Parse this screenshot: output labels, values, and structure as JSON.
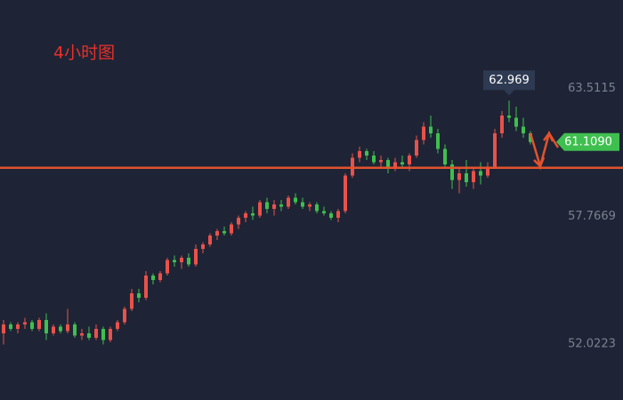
{
  "chart_data": {
    "type": "candlestick",
    "title": "4小时图",
    "ylim": [
      49.5,
      67.5
    ],
    "yticks": [
      52.0223,
      57.7669,
      63.5115
    ],
    "up_color": "#e8524a",
    "down_color": "#3fbf4f",
    "level": 59.95,
    "level_color": "#e2532d",
    "last_price": {
      "value": 61.109,
      "label": "61.1090"
    },
    "open": [
      52.5,
      52.9,
      52.7,
      52.9,
      53.0,
      52.7,
      53.1,
      52.5,
      52.8,
      52.6,
      52.9,
      52.4,
      52.5,
      52.3,
      52.7,
      52.2,
      52.7,
      53.0,
      53.6,
      54.3,
      54.1,
      55.1,
      54.9,
      55.2,
      55.8,
      55.7,
      55.9,
      55.6,
      56.3,
      56.5,
      56.9,
      57.1,
      57.0,
      57.4,
      57.7,
      57.9,
      57.8,
      58.4,
      58.1,
      58.3,
      58.2,
      58.6,
      58.4,
      58.2,
      58.3,
      58.0,
      57.9,
      57.7,
      58.0,
      59.6,
      60.4,
      60.7,
      60.5,
      60.2,
      60.3,
      60.0,
      60.2,
      60.1,
      60.5,
      61.2,
      61.8,
      61.5,
      60.8,
      60.1,
      59.4,
      59.7,
      59.3,
      59.8,
      59.6,
      60.0,
      61.5,
      62.3,
      62.2,
      61.8,
      61.5
    ],
    "high": [
      53.1,
      53.0,
      53.0,
      53.2,
      53.1,
      53.2,
      53.4,
      52.9,
      52.9,
      53.6,
      53.0,
      52.7,
      52.8,
      52.9,
      52.8,
      52.8,
      53.1,
      53.7,
      54.5,
      54.5,
      55.3,
      55.2,
      55.3,
      55.9,
      56.0,
      56.0,
      56.1,
      56.5,
      56.6,
      57.0,
      57.2,
      57.3,
      57.5,
      57.8,
      58.0,
      58.2,
      58.5,
      58.6,
      58.5,
      58.5,
      58.7,
      58.8,
      58.6,
      58.4,
      58.4,
      58.2,
      58.0,
      58.1,
      59.7,
      60.6,
      60.9,
      60.8,
      60.7,
      60.5,
      60.4,
      60.4,
      60.5,
      60.6,
      61.4,
      62.0,
      62.3,
      61.7,
      61.0,
      60.3,
      59.9,
      60.3,
      60.0,
      60.2,
      60.2,
      61.7,
      62.5,
      62.969,
      62.7,
      62.2,
      61.6
    ],
    "low": [
      52.0,
      52.6,
      52.5,
      52.7,
      52.6,
      52.6,
      52.2,
      52.4,
      52.5,
      52.5,
      52.3,
      52.2,
      52.2,
      52.2,
      52.0,
      52.1,
      52.6,
      52.9,
      53.5,
      53.9,
      54.0,
      54.7,
      54.8,
      55.1,
      55.5,
      55.4,
      55.5,
      55.5,
      56.1,
      56.4,
      56.7,
      56.9,
      56.9,
      57.2,
      57.5,
      57.6,
      57.7,
      57.9,
      57.8,
      58.0,
      58.1,
      58.3,
      58.1,
      58.0,
      57.9,
      57.8,
      57.6,
      57.5,
      57.9,
      59.5,
      60.2,
      60.3,
      60.1,
      60.0,
      59.7,
      59.8,
      59.9,
      59.8,
      60.4,
      61.0,
      61.3,
      60.6,
      59.9,
      59.0,
      58.8,
      59.1,
      59.0,
      59.2,
      59.5,
      59.9,
      61.3,
      62.0,
      61.6,
      61.3,
      61.0
    ],
    "close": [
      52.9,
      52.7,
      52.9,
      53.0,
      52.7,
      53.1,
      52.5,
      52.8,
      52.6,
      52.9,
      52.4,
      52.5,
      52.3,
      52.7,
      52.2,
      52.7,
      53.0,
      53.6,
      54.3,
      54.1,
      55.1,
      54.9,
      55.2,
      55.8,
      55.7,
      55.9,
      55.6,
      56.3,
      56.5,
      56.9,
      57.1,
      57.0,
      57.4,
      57.7,
      57.9,
      57.8,
      58.4,
      58.1,
      58.3,
      58.2,
      58.6,
      58.4,
      58.2,
      58.3,
      58.0,
      57.9,
      57.7,
      58.0,
      59.6,
      60.4,
      60.7,
      60.5,
      60.2,
      60.3,
      60.0,
      60.2,
      60.1,
      60.5,
      61.2,
      61.8,
      61.5,
      60.8,
      60.1,
      59.4,
      59.7,
      59.3,
      59.8,
      59.6,
      60.0,
      61.5,
      62.3,
      62.2,
      61.8,
      61.5,
      61.109
    ]
  }
}
